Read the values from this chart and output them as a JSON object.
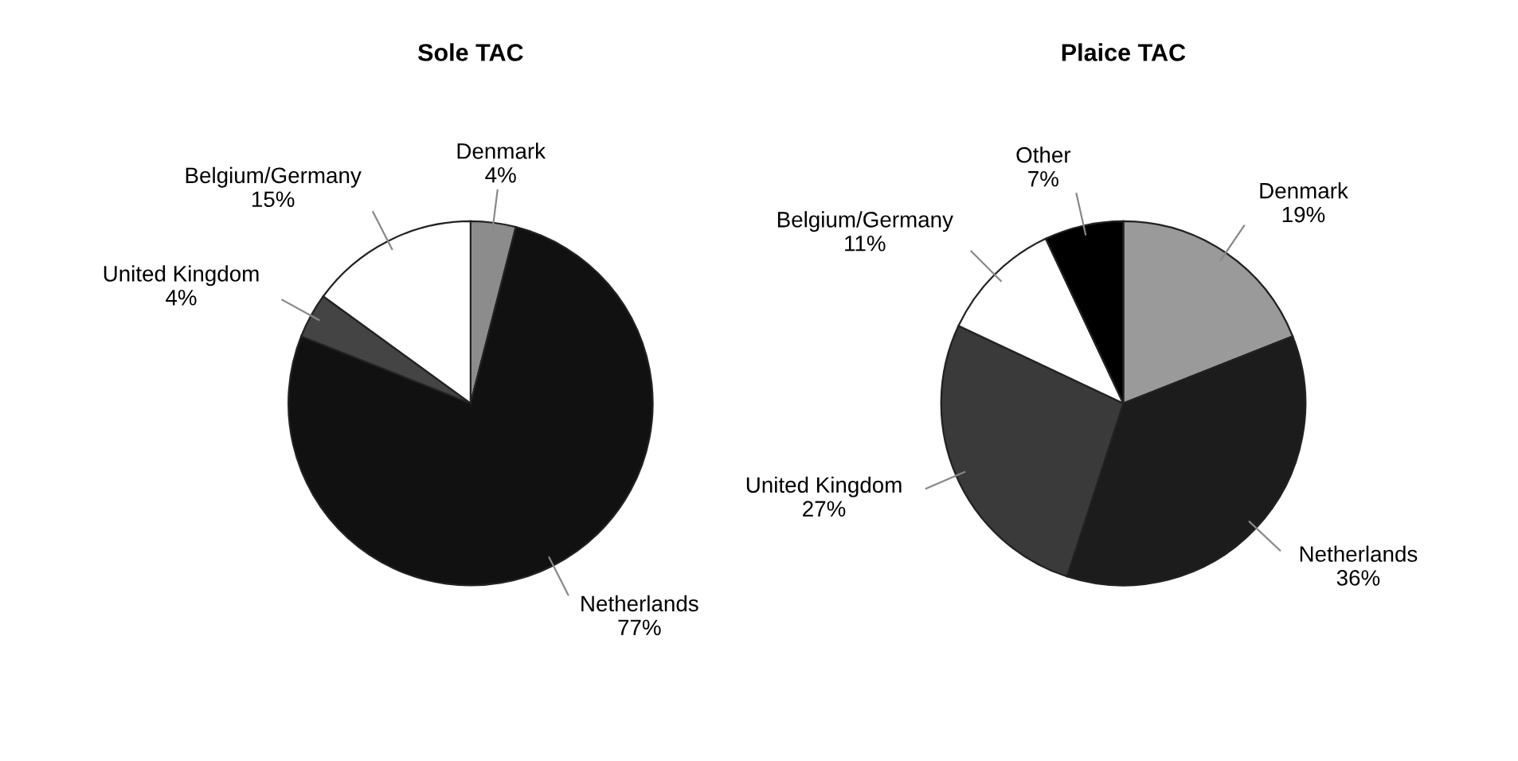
{
  "chart_data": [
    {
      "type": "pie",
      "title": "Sole TAC",
      "categories": [
        "Denmark",
        "Netherlands",
        "United Kingdom",
        "Belgium/Germany"
      ],
      "values": [
        4,
        77,
        4,
        15
      ],
      "value_labels": [
        "4%",
        "77%",
        "4%",
        "15%"
      ],
      "colors": [
        "#8c8c8c",
        "#111111",
        "#444444",
        "#ffffff"
      ]
    },
    {
      "type": "pie",
      "title": "Plaice TAC",
      "categories": [
        "Denmark",
        "Netherlands",
        "United Kingdom",
        "Belgium/Germany",
        "Other"
      ],
      "values": [
        19,
        36,
        27,
        11,
        7
      ],
      "value_labels": [
        "19%",
        "36%",
        "27%",
        "11%",
        "7%"
      ],
      "colors": [
        "#9a9a9a",
        "#1c1c1c",
        "#3a3a3a",
        "#ffffff",
        "#000000"
      ]
    }
  ]
}
